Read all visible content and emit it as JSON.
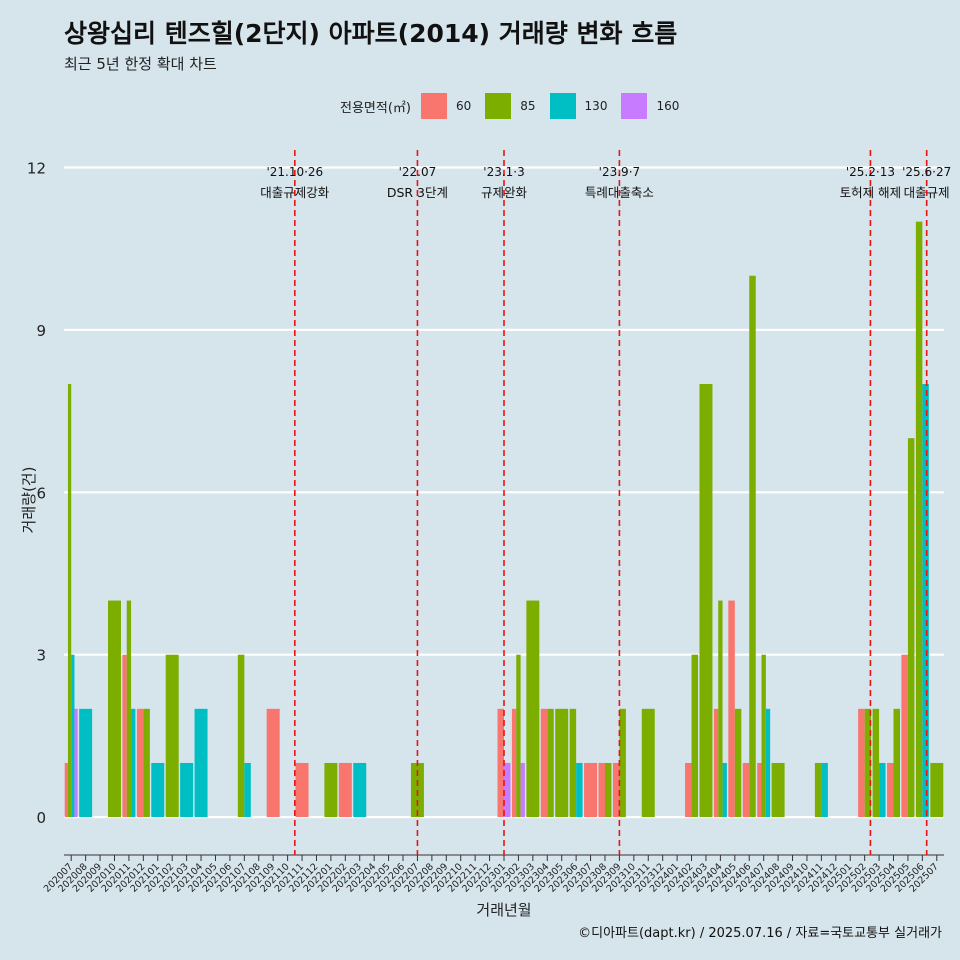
{
  "header": {
    "title": "상왕십리 텐즈힐(2단지) 아파트(2014) 거래량 변화 흐름",
    "subtitle": "최근 5년 한정 확대 차트"
  },
  "caption": "©디아파트(dapt.kr) / 2025.07.16 / 자료=국토교통부 실거래가",
  "legend": {
    "title": "전용면적(㎡)",
    "items": [
      {
        "label": "60",
        "color": "#f8766d"
      },
      {
        "label": "85",
        "color": "#7cae00"
      },
      {
        "label": "130",
        "color": "#00bfc4"
      },
      {
        "label": "160",
        "color": "#c77cff"
      }
    ]
  },
  "chart_data": {
    "type": "bar",
    "xlabel": "거래년월",
    "ylabel": "거래량(건)",
    "ylim": [
      -0.7,
      12.6
    ],
    "yticks": [
      0,
      3,
      6,
      9,
      12
    ],
    "categories": [
      "202007",
      "202008",
      "202009",
      "202010",
      "202011",
      "202012",
      "202101",
      "202102",
      "202103",
      "202104",
      "202105",
      "202106",
      "202107",
      "202108",
      "202109",
      "202110",
      "202111",
      "202112",
      "202201",
      "202202",
      "202203",
      "202204",
      "202205",
      "202206",
      "202207",
      "202208",
      "202209",
      "202210",
      "202211",
      "202212",
      "202301",
      "202302",
      "202303",
      "202304",
      "202305",
      "202306",
      "202307",
      "202308",
      "202309",
      "202310",
      "202311",
      "202312",
      "202401",
      "202402",
      "202403",
      "202404",
      "202405",
      "202406",
      "202407",
      "202408",
      "202409",
      "202410",
      "202411",
      "202412",
      "202501",
      "202502",
      "202503",
      "202504",
      "202505",
      "202506",
      "202507"
    ],
    "series": [
      {
        "name": "60",
        "color": "#f8766d",
        "values": [
          1,
          0,
          0,
          0,
          3,
          2,
          0,
          0,
          0,
          0,
          0,
          0,
          0,
          0,
          2,
          0,
          1,
          0,
          0,
          1,
          0,
          0,
          0,
          0,
          0,
          0,
          0,
          0,
          0,
          0,
          2,
          2,
          0,
          2,
          0,
          0,
          1,
          1,
          1,
          0,
          0,
          0,
          0,
          1,
          0,
          2,
          4,
          1,
          1,
          0,
          0,
          0,
          0,
          0,
          0,
          2,
          0,
          1,
          3,
          0,
          0
        ]
      },
      {
        "name": "85",
        "color": "#7cae00",
        "values": [
          8,
          0,
          0,
          4,
          4,
          2,
          0,
          3,
          0,
          0,
          0,
          0,
          3,
          0,
          0,
          0,
          0,
          0,
          1,
          0,
          0,
          0,
          0,
          0,
          1,
          0,
          0,
          0,
          0,
          0,
          0,
          3,
          4,
          2,
          2,
          2,
          0,
          1,
          2,
          0,
          2,
          0,
          0,
          3,
          8,
          4,
          2,
          10,
          3,
          1,
          0,
          0,
          1,
          0,
          0,
          2,
          2,
          2,
          7,
          11,
          1
        ]
      },
      {
        "name": "130",
        "color": "#00bfc4",
        "values": [
          3,
          2,
          0,
          0,
          2,
          0,
          1,
          0,
          1,
          2,
          0,
          0,
          1,
          0,
          0,
          0,
          0,
          0,
          0,
          0,
          1,
          0,
          0,
          0,
          0,
          0,
          0,
          0,
          0,
          0,
          0,
          0,
          0,
          0,
          0,
          1,
          0,
          0,
          0,
          0,
          0,
          0,
          0,
          0,
          0,
          1,
          0,
          0,
          2,
          0,
          0,
          0,
          1,
          0,
          0,
          0,
          1,
          0,
          0,
          8,
          0
        ]
      },
      {
        "name": "160",
        "color": "#c77cff",
        "values": [
          2,
          0,
          0,
          0,
          0,
          0,
          0,
          0,
          0,
          0,
          0,
          0,
          0,
          0,
          0,
          0,
          0,
          0,
          0,
          0,
          0,
          0,
          0,
          0,
          0,
          0,
          0,
          0,
          0,
          0,
          1,
          1,
          0,
          0,
          0,
          0,
          0,
          0,
          0,
          0,
          0,
          0,
          0,
          0,
          0,
          0,
          0,
          0,
          0,
          0,
          0,
          0,
          0,
          0,
          0,
          0,
          0,
          0,
          0,
          0,
          0
        ]
      }
    ],
    "events": [
      {
        "month_index": 15.5,
        "date": "'21.10·26",
        "label": "대출규제강화"
      },
      {
        "month_index": 24,
        "date": "'22.07",
        "label": "DSR 3단계"
      },
      {
        "month_index": 30,
        "date": "'23.1·3",
        "label": "규제완화"
      },
      {
        "month_index": 38,
        "date": "'23.9·7",
        "label": "특례대출축소"
      },
      {
        "month_index": 55.4,
        "date": "'25.2·13",
        "label": "토허제 해제"
      },
      {
        "month_index": 59.3,
        "date": "'25.6·27",
        "label": "대출규제"
      }
    ]
  }
}
